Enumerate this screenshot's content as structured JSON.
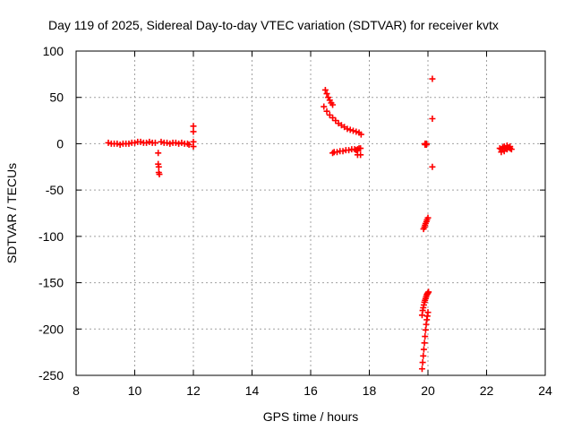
{
  "chart_data": {
    "type": "scatter",
    "title": "Day 119 of 2025, Sidereal Day-to-day VTEC variation (SDTVAR) for receiver kvtx",
    "xlabel": "GPS time / hours",
    "ylabel": "SDTVAR / TECUs",
    "xlim": [
      8,
      24
    ],
    "ylim": [
      -250,
      100
    ],
    "xticks": [
      "8",
      "10",
      "12",
      "14",
      "16",
      "18",
      "20",
      "22",
      "24"
    ],
    "yticks": [
      "100",
      "50",
      "0",
      "-50",
      "-100",
      "-150",
      "-200",
      "-250"
    ],
    "grid": true,
    "marker": "+",
    "color": "#ff0000",
    "series": [
      {
        "name": "seg1",
        "x": [
          9.1,
          9.2,
          9.3,
          9.4,
          9.5,
          9.6,
          9.7,
          9.8,
          9.9,
          10.0,
          10.1,
          10.2,
          10.3,
          10.4,
          10.5,
          10.6,
          10.7
        ],
        "y": [
          1,
          0,
          0,
          0,
          -1,
          0,
          0,
          0,
          1,
          1,
          2,
          2,
          1,
          1,
          2,
          1,
          1
        ]
      },
      {
        "name": "seg2",
        "x": [
          10.8,
          10.8,
          10.82,
          10.82,
          10.84
        ],
        "y": [
          -10,
          -22,
          -25,
          -31,
          -33
        ]
      },
      {
        "name": "seg3",
        "x": [
          10.9,
          11.0,
          11.1,
          11.2,
          11.3,
          11.4,
          11.5,
          11.6,
          11.7,
          11.8,
          11.85
        ],
        "y": [
          2,
          1,
          1,
          0,
          1,
          1,
          0,
          1,
          0,
          0,
          -1
        ]
      },
      {
        "name": "seg4",
        "x": [
          12.0,
          12.0,
          12.0,
          12.0
        ],
        "y": [
          19,
          13,
          2,
          -3
        ]
      },
      {
        "name": "seg5a",
        "x": [
          16.45,
          16.55,
          16.65,
          16.75,
          16.85,
          16.95,
          17.05,
          17.15,
          17.25,
          17.35,
          17.45,
          17.55,
          17.65,
          17.72
        ],
        "y": [
          40,
          35,
          31,
          28,
          25,
          22,
          20,
          18,
          16,
          15,
          14,
          13,
          12,
          10
        ]
      },
      {
        "name": "seg5b",
        "x": [
          16.5,
          16.55,
          16.6,
          16.65,
          16.7,
          16.75
        ],
        "y": [
          58,
          54,
          50,
          47,
          44,
          42
        ]
      },
      {
        "name": "seg6",
        "x": [
          16.75,
          16.8,
          16.9,
          17.0,
          17.1,
          17.2,
          17.3,
          17.4,
          17.5,
          17.55,
          17.6,
          17.65,
          17.7,
          17.7,
          17.6
        ],
        "y": [
          -10,
          -9,
          -9,
          -8,
          -8,
          -7,
          -7,
          -6,
          -6,
          -7,
          -6,
          -5,
          -5,
          -12,
          -12
        ]
      },
      {
        "name": "seg7",
        "x": [
          19.9,
          19.9,
          19.95,
          19.95
        ],
        "y": [
          0,
          -1,
          0,
          -1
        ]
      },
      {
        "name": "seg8",
        "x": [
          20.15,
          20.15,
          20.15
        ],
        "y": [
          70,
          27,
          -25
        ]
      },
      {
        "name": "seg9",
        "x": [
          19.85,
          19.88,
          19.9,
          19.92,
          19.95,
          19.97,
          20.0
        ],
        "y": [
          -92,
          -90,
          -88,
          -86,
          -84,
          -82,
          -80
        ]
      },
      {
        "name": "seg10",
        "x": [
          19.8,
          19.82,
          19.84,
          19.86,
          19.88,
          19.9,
          19.92,
          19.94,
          19.96,
          19.98,
          20.0,
          20.02
        ],
        "y": [
          -185,
          -180,
          -177,
          -174,
          -171,
          -169,
          -167,
          -165,
          -163,
          -162,
          -161,
          -160
        ]
      },
      {
        "name": "seg11",
        "x": [
          19.8,
          19.82,
          19.84,
          19.86,
          19.88,
          19.9,
          19.92,
          19.94,
          19.96,
          19.98,
          20.0
        ],
        "y": [
          -243,
          -236,
          -229,
          -222,
          -215,
          -208,
          -201,
          -195,
          -190,
          -186,
          -182
        ]
      },
      {
        "name": "seg12",
        "x": [
          22.45,
          22.5,
          22.55,
          22.6,
          22.65,
          22.7,
          22.75,
          22.8,
          22.85,
          22.5,
          22.6,
          22.7,
          22.8
        ],
        "y": [
          -5,
          -6,
          -4,
          -3,
          -5,
          -6,
          -4,
          -5,
          -6,
          -9,
          -8,
          -2,
          -3
        ]
      }
    ]
  }
}
